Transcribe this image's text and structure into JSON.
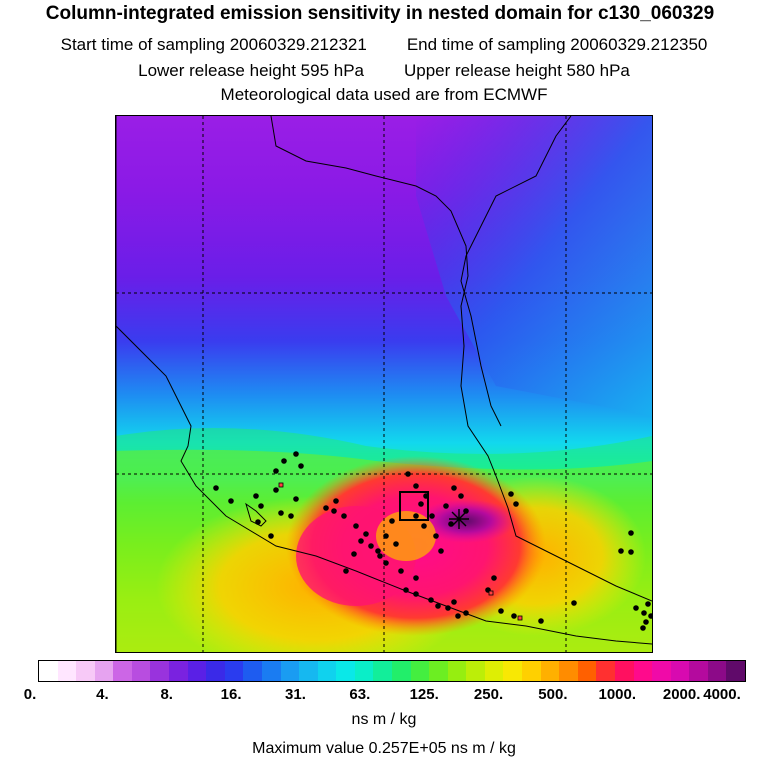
{
  "header": {
    "title": "Column-integrated emission sensitivity in nested domain for c130_060329",
    "start_label": "Start time of sampling 20060329.212321",
    "end_label": "End time of sampling 20060329.212350",
    "lower_label": "Lower release height  595 hPa",
    "upper_label": "Upper release height  580 hPa",
    "met_label": "Meteorological data used are from ECMWF"
  },
  "colorbar": {
    "tick_labels": [
      "0.",
      "4.",
      "8.",
      "16.",
      "31.",
      "63.",
      "125.",
      "250.",
      "500.",
      "1000.",
      "2000.",
      "4000."
    ],
    "colors": [
      "#ffffff",
      "#ffe6ff",
      "#f7c9f7",
      "#e6a3f0",
      "#cc66e6",
      "#b84de0",
      "#9933dd",
      "#7a22e0",
      "#5a20e6",
      "#3a2ae8",
      "#2a3cef",
      "#1e5cf0",
      "#1a7cf2",
      "#1a9cf2",
      "#16b8f0",
      "#10d2ee",
      "#0ae8e8",
      "#0aeec8",
      "#12ee9a",
      "#22ee6a",
      "#44ee40",
      "#6cee22",
      "#96ee10",
      "#bcee08",
      "#deee04",
      "#f8e804",
      "#ffd000",
      "#ffb000",
      "#ff8c00",
      "#ff6000",
      "#ff3030",
      "#ff1060",
      "#ff0a8c",
      "#f00aa8",
      "#d80ab0",
      "#b40a9e",
      "#8c0a88",
      "#600a6a"
    ],
    "units": "ns m / kg",
    "max_value_label": "Maximum value  0.257E+05 ns m / kg"
  },
  "map": {
    "receptor_box_icon": "receptor-box",
    "max_marker_icon": "star-marker"
  }
}
